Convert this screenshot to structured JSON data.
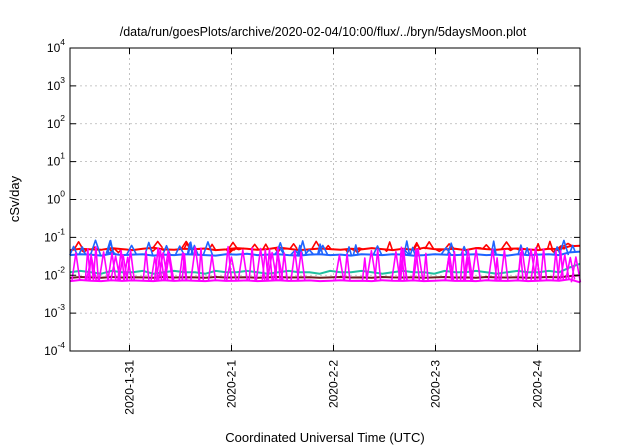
{
  "chart_data": {
    "type": "line",
    "title": "/data/run/goesPlots/archive/2020-02-04/10:00/flux/../bryn/5daysMoon.plot",
    "xlabel": "Coordinated Universal Time (UTC)",
    "ylabel": "cSv/day",
    "y_scale": "log",
    "ylim": [
      0.0001,
      10000
    ],
    "y_ticks": [
      {
        "base": "10",
        "exp": "-4",
        "value": 0.0001
      },
      {
        "base": "10",
        "exp": "-3",
        "value": 0.001
      },
      {
        "base": "10",
        "exp": "-2",
        "value": 0.01
      },
      {
        "base": "10",
        "exp": "-1",
        "value": 0.1
      },
      {
        "base": "10",
        "exp": "0",
        "value": 1
      },
      {
        "base": "10",
        "exp": "1",
        "value": 10
      },
      {
        "base": "10",
        "exp": "2",
        "value": 100
      },
      {
        "base": "10",
        "exp": "3",
        "value": 1000
      },
      {
        "base": "10",
        "exp": "4",
        "value": 10000
      }
    ],
    "x_start": "2020-01-30 10:00",
    "x_end": "2020-02-04 10:00",
    "x_ticks": [
      {
        "label": "2020-1-31",
        "value": "2020-01-31 00:00"
      },
      {
        "label": "2020-2-1",
        "value": "2020-02-01 00:00"
      },
      {
        "label": "2020-2-2",
        "value": "2020-02-02 00:00"
      },
      {
        "label": "2020-2-3",
        "value": "2020-02-03 00:00"
      },
      {
        "label": "2020-2-4",
        "value": "2020-02-04 00:00"
      }
    ],
    "grid": true,
    "legend": "none",
    "series": [
      {
        "color": "#ff0000",
        "values": [
          0.046,
          0.05,
          0.048,
          0.047,
          0.052,
          0.049,
          0.046,
          0.05,
          0.053,
          0.048,
          0.047,
          0.05,
          0.049,
          0.051,
          0.046,
          0.048,
          0.052,
          0.05,
          0.047,
          0.049,
          0.054,
          0.05,
          0.046,
          0.048,
          0.051,
          0.049,
          0.047,
          0.05,
          0.048,
          0.052,
          0.049,
          0.046,
          0.05,
          0.047,
          0.053,
          0.049,
          0.048,
          0.05,
          0.046,
          0.052,
          0.049,
          0.047,
          0.05,
          0.051,
          0.048,
          0.046,
          0.05,
          0.049,
          0.058,
          0.06
        ],
        "spikes": {
          "count": 48,
          "level": 0.07,
          "seed": 3
        }
      },
      {
        "color": "#1e64ff",
        "values": [
          0.034,
          0.036,
          0.035,
          0.033,
          0.037,
          0.034,
          0.035,
          0.036,
          0.033,
          0.035,
          0.034,
          0.036,
          0.035,
          0.034,
          0.033,
          0.036,
          0.035,
          0.037,
          0.034,
          0.035,
          0.036,
          0.034,
          0.033,
          0.035,
          0.036,
          0.034,
          0.035,
          0.033,
          0.036,
          0.035,
          0.034,
          0.036,
          0.035,
          0.033,
          0.034,
          0.036,
          0.035,
          0.034,
          0.035,
          0.036,
          0.034,
          0.035,
          0.033,
          0.036,
          0.034,
          0.035,
          0.036,
          0.034,
          0.04,
          0.042
        ],
        "spikes": {
          "count": 40,
          "level": 0.075,
          "seed": 7
        }
      },
      {
        "color": "#20c0a0",
        "values": [
          0.012,
          0.013,
          0.012,
          0.011,
          0.013,
          0.012,
          0.012,
          0.013,
          0.011,
          0.012,
          0.013,
          0.012,
          0.012,
          0.011,
          0.013,
          0.012,
          0.012,
          0.013,
          0.012,
          0.011,
          0.012,
          0.013,
          0.012,
          0.012,
          0.011,
          0.013,
          0.012,
          0.012,
          0.013,
          0.012,
          0.011,
          0.012,
          0.013,
          0.012,
          0.012,
          0.011,
          0.013,
          0.012,
          0.012,
          0.013,
          0.012,
          0.011,
          0.012,
          0.013,
          0.012,
          0.012,
          0.013,
          0.012,
          0.016,
          0.02
        ],
        "spikes": {
          "count": 0,
          "level": 0,
          "seed": 1
        }
      },
      {
        "color": "#6b1e1e",
        "values": [
          0.0085,
          0.009,
          0.0088,
          0.0086,
          0.009,
          0.0087,
          0.0089,
          0.0088,
          0.0086,
          0.009,
          0.0087,
          0.0089,
          0.0088,
          0.0086,
          0.009,
          0.0087,
          0.0088,
          0.0089,
          0.0086,
          0.0088,
          0.009,
          0.0087,
          0.0088,
          0.0089,
          0.0086,
          0.0088,
          0.009,
          0.0087,
          0.0088,
          0.0086,
          0.009,
          0.0088,
          0.0087,
          0.0089,
          0.0086,
          0.0088,
          0.009,
          0.0087,
          0.0088,
          0.0086,
          0.009,
          0.0088,
          0.0087,
          0.0089,
          0.0086,
          0.0088,
          0.009,
          0.0088,
          0.0095,
          0.01
        ],
        "spikes": {
          "count": 0,
          "level": 0,
          "seed": 1
        }
      },
      {
        "color": "#ff00ff",
        "values": [
          0.007,
          0.0075,
          0.0072,
          0.007,
          0.0074,
          0.0071,
          0.0073,
          0.0072,
          0.007,
          0.0074,
          0.0071,
          0.0073,
          0.0072,
          0.007,
          0.0074,
          0.0071,
          0.0072,
          0.0073,
          0.007,
          0.0072,
          0.0074,
          0.0071,
          0.0072,
          0.0073,
          0.007,
          0.0072,
          0.0074,
          0.0071,
          0.0072,
          0.007,
          0.0074,
          0.0072,
          0.0071,
          0.0073,
          0.007,
          0.0072,
          0.0074,
          0.0071,
          0.0072,
          0.007,
          0.0074,
          0.0072,
          0.0071,
          0.0073,
          0.007,
          0.0072,
          0.0074,
          0.0072,
          0.0078,
          0.0065
        ],
        "spikes": {
          "count": 70,
          "level": 0.05,
          "seed": 11
        }
      }
    ]
  }
}
